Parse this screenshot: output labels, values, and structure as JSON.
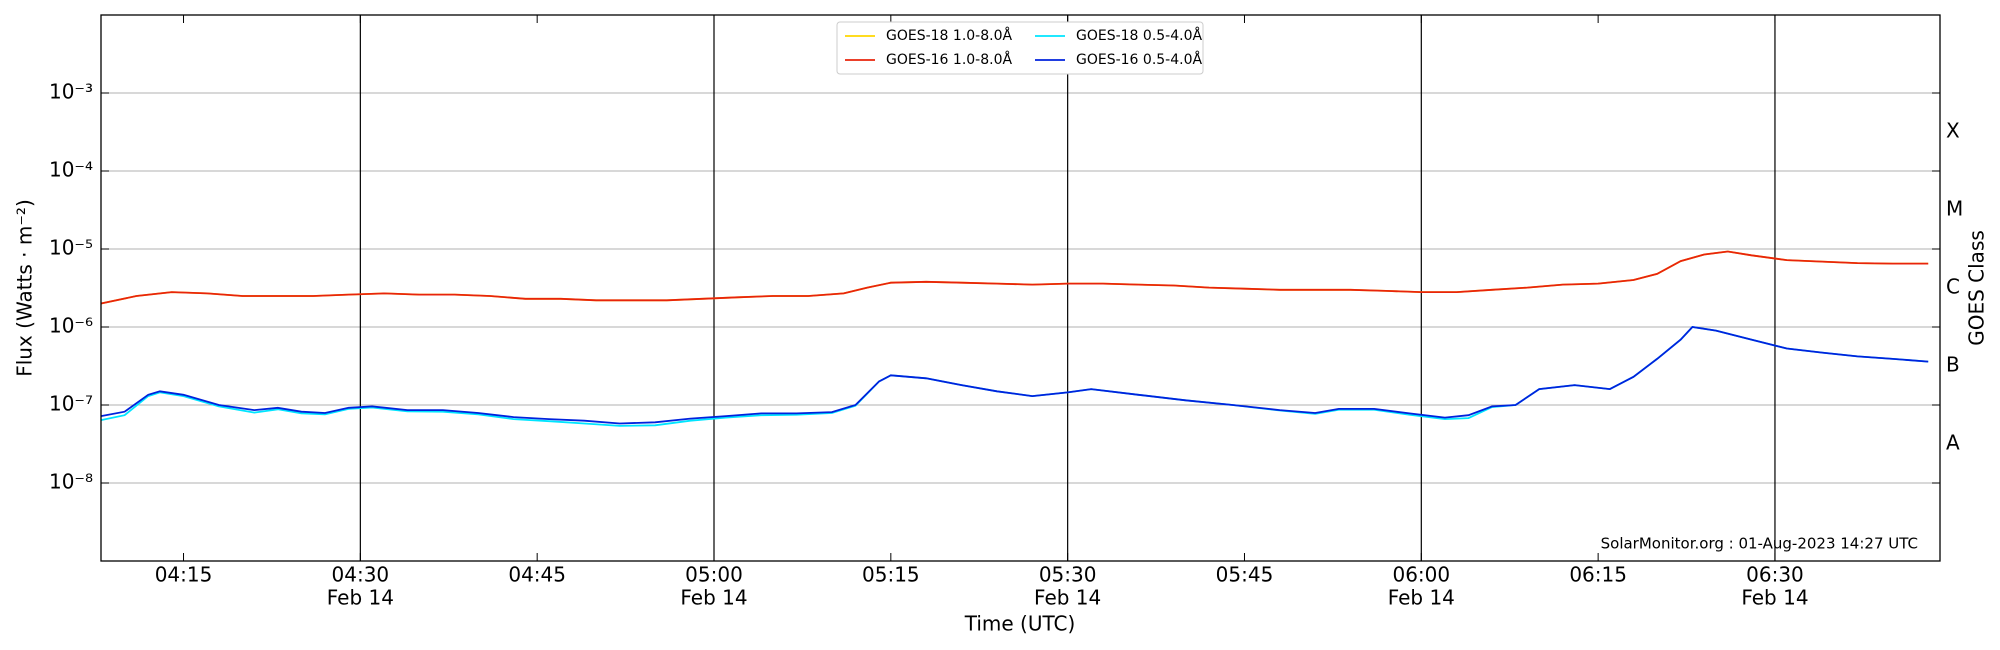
{
  "chart_data": {
    "type": "line",
    "yscale": "log",
    "grid": true,
    "xlabel": "Time (UTC)",
    "ylabel": "Flux (Watts · m⁻²)",
    "y2label": "GOES Class",
    "annotation": "SolarMonitor.org : 01-Aug-2023 14:27 UTC",
    "legend": "upper center",
    "xlim": [
      "04:08",
      "06:44"
    ],
    "xticks": [
      "04:15",
      {
        "value": "04:30",
        "label": "04:30",
        "date": "Feb 14"
      },
      "04:45",
      {
        "value": "05:00",
        "label": "05:00",
        "date": "Feb 14"
      },
      "05:15",
      {
        "value": "05:30",
        "label": "05:30",
        "date": "Feb 14"
      },
      "05:45",
      {
        "value": "06:00",
        "label": "06:00",
        "date": "Feb 14"
      },
      "06:15",
      {
        "value": "06:30",
        "label": "06:30",
        "date": "Feb 14"
      }
    ],
    "ylim": [
      1e-09,
      0.01
    ],
    "yticks": [
      {
        "value": 1e-08,
        "label": "10⁻⁸"
      },
      {
        "value": 1e-07,
        "label": "10⁻⁷"
      },
      {
        "value": 1e-06,
        "label": "10⁻⁶"
      },
      {
        "value": 1e-05,
        "label": "10⁻⁵"
      },
      {
        "value": 0.0001,
        "label": "10⁻⁴"
      },
      {
        "value": 0.001,
        "label": "10⁻³"
      }
    ],
    "classes": [
      {
        "label": "A",
        "value": 1e-08
      },
      {
        "label": "B",
        "value": 1e-07
      },
      {
        "label": "C",
        "value": 1e-06
      },
      {
        "label": "M",
        "value": 1e-05
      },
      {
        "label": "X",
        "value": 0.0001
      }
    ],
    "series": [
      {
        "name": "GOES-18 1.0-8.0Å",
        "color": "#ffd700",
        "x": [
          "04:08",
          "04:11",
          "04:14",
          "04:17",
          "04:20",
          "04:23",
          "04:26",
          "04:29",
          "04:32",
          "04:35",
          "04:38",
          "04:41",
          "04:44",
          "04:47",
          "04:50",
          "04:53",
          "04:56",
          "04:59",
          "05:02",
          "05:05",
          "05:08",
          "05:11",
          "05:13",
          "05:15",
          "05:18",
          "05:21",
          "05:24",
          "05:27",
          "05:30",
          "05:33",
          "05:36",
          "05:39",
          "05:42",
          "05:45",
          "05:48",
          "05:51",
          "05:54",
          "05:57",
          "06:00",
          "06:03",
          "06:06",
          "06:09",
          "06:12",
          "06:15",
          "06:18",
          "06:20",
          "06:22",
          "06:24",
          "06:26",
          "06:28",
          "06:31",
          "06:34",
          "06:37",
          "06:40",
          "06:43"
        ],
        "values": [
          2e-06,
          2.5e-06,
          2.8e-06,
          2.7e-06,
          2.5e-06,
          2.5e-06,
          2.5e-06,
          2.6e-06,
          2.7e-06,
          2.6e-06,
          2.6e-06,
          2.5e-06,
          2.3e-06,
          2.3e-06,
          2.2e-06,
          2.2e-06,
          2.2e-06,
          2.3e-06,
          2.4e-06,
          2.5e-06,
          2.5e-06,
          2.7e-06,
          3.2e-06,
          3.7e-06,
          3.8e-06,
          3.7e-06,
          3.6e-06,
          3.5e-06,
          3.6e-06,
          3.6e-06,
          3.5e-06,
          3.4e-06,
          3.2e-06,
          3.1e-06,
          3e-06,
          3e-06,
          3e-06,
          2.9e-06,
          2.8e-06,
          2.8e-06,
          3e-06,
          3.2e-06,
          3.5e-06,
          3.6e-06,
          4e-06,
          4.8e-06,
          7e-06,
          8.5e-06,
          9.3e-06,
          8.3e-06,
          7.2e-06,
          6.9e-06,
          6.6e-06,
          6.5e-06,
          6.5e-06
        ]
      },
      {
        "name": "GOES-16 1.0-8.0Å",
        "color": "#e8240c",
        "x": [
          "04:08",
          "04:11",
          "04:14",
          "04:17",
          "04:20",
          "04:23",
          "04:26",
          "04:29",
          "04:32",
          "04:35",
          "04:38",
          "04:41",
          "04:44",
          "04:47",
          "04:50",
          "04:53",
          "04:56",
          "04:59",
          "05:02",
          "05:05",
          "05:08",
          "05:11",
          "05:13",
          "05:15",
          "05:18",
          "05:21",
          "05:24",
          "05:27",
          "05:30",
          "05:33",
          "05:36",
          "05:39",
          "05:42",
          "05:45",
          "05:48",
          "05:51",
          "05:54",
          "05:57",
          "06:00",
          "06:03",
          "06:06",
          "06:09",
          "06:12",
          "06:15",
          "06:18",
          "06:20",
          "06:22",
          "06:24",
          "06:26",
          "06:28",
          "06:31",
          "06:34",
          "06:37",
          "06:40",
          "06:43"
        ],
        "values": [
          2e-06,
          2.5e-06,
          2.8e-06,
          2.7e-06,
          2.5e-06,
          2.5e-06,
          2.5e-06,
          2.6e-06,
          2.7e-06,
          2.6e-06,
          2.6e-06,
          2.5e-06,
          2.3e-06,
          2.3e-06,
          2.2e-06,
          2.2e-06,
          2.2e-06,
          2.3e-06,
          2.4e-06,
          2.5e-06,
          2.5e-06,
          2.7e-06,
          3.2e-06,
          3.7e-06,
          3.8e-06,
          3.7e-06,
          3.6e-06,
          3.5e-06,
          3.6e-06,
          3.6e-06,
          3.5e-06,
          3.4e-06,
          3.2e-06,
          3.1e-06,
          3e-06,
          3e-06,
          3e-06,
          2.9e-06,
          2.8e-06,
          2.8e-06,
          3e-06,
          3.2e-06,
          3.5e-06,
          3.6e-06,
          4e-06,
          4.8e-06,
          7e-06,
          8.5e-06,
          9.3e-06,
          8.3e-06,
          7.2e-06,
          6.9e-06,
          6.6e-06,
          6.5e-06,
          6.5e-06
        ]
      },
      {
        "name": "GOES-18 0.5-4.0Å",
        "color": "#00e5ff",
        "x": [
          "04:08",
          "04:10",
          "04:12",
          "04:13",
          "04:15",
          "04:18",
          "04:21",
          "04:23",
          "04:25",
          "04:27",
          "04:29",
          "04:31",
          "04:34",
          "04:37",
          "04:40",
          "04:43",
          "04:46",
          "04:49",
          "04:52",
          "04:55",
          "04:58",
          "05:01",
          "05:04",
          "05:07",
          "05:10",
          "05:12",
          "05:14",
          "05:15",
          "05:18",
          "05:21",
          "05:24",
          "05:27",
          "05:30",
          "05:32",
          "05:36",
          "05:40",
          "05:44",
          "05:48",
          "05:51",
          "05:53",
          "05:56",
          "05:59",
          "06:02",
          "06:04",
          "06:06",
          "06:08",
          "06:10",
          "06:13",
          "06:16",
          "06:18",
          "06:20",
          "06:22",
          "06:23",
          "06:25",
          "06:28",
          "06:31",
          "06:34",
          "06:37",
          "06:40",
          "06:43"
        ],
        "values": [
          6.4e-08,
          7.4e-08,
          1.3e-07,
          1.45e-07,
          1.3e-07,
          9.6e-08,
          8e-08,
          8.8e-08,
          7.8e-08,
          7.6e-08,
          8.9e-08,
          9.3e-08,
          8.3e-08,
          8.2e-08,
          7.6e-08,
          6.6e-08,
          6.2e-08,
          5.8e-08,
          5.4e-08,
          5.5e-08,
          6.3e-08,
          6.9e-08,
          7.4e-08,
          7.5e-08,
          7.9e-08,
          9.8e-08,
          2e-07,
          2.4e-07,
          2.2e-07,
          1.8e-07,
          1.5e-07,
          1.3e-07,
          1.45e-07,
          1.6e-07,
          1.35e-07,
          1.15e-07,
          1e-07,
          8.5e-08,
          7.7e-08,
          8.7e-08,
          8.7e-08,
          7.5e-08,
          6.6e-08,
          6.8e-08,
          9.4e-08,
          1e-07,
          1.6e-07,
          1.8e-07,
          1.6e-07,
          2.3e-07,
          3.9e-07,
          6.9e-07,
          1e-06,
          9e-07,
          6.9e-07,
          5.3e-07,
          4.7e-07,
          4.2e-07,
          3.9e-07,
          3.6e-07
        ]
      },
      {
        "name": "GOES-16 0.5-4.0Å",
        "color": "#0022dd",
        "x": [
          "04:08",
          "04:10",
          "04:12",
          "04:13",
          "04:15",
          "04:18",
          "04:21",
          "04:23",
          "04:25",
          "04:27",
          "04:29",
          "04:31",
          "04:34",
          "04:37",
          "04:40",
          "04:43",
          "04:46",
          "04:49",
          "04:52",
          "04:55",
          "04:58",
          "05:01",
          "05:04",
          "05:07",
          "05:10",
          "05:12",
          "05:14",
          "05:15",
          "05:18",
          "05:21",
          "05:24",
          "05:27",
          "05:30",
          "05:32",
          "05:36",
          "05:40",
          "05:44",
          "05:48",
          "05:51",
          "05:53",
          "05:56",
          "05:59",
          "06:02",
          "06:04",
          "06:06",
          "06:08",
          "06:10",
          "06:13",
          "06:16",
          "06:18",
          "06:20",
          "06:22",
          "06:23",
          "06:25",
          "06:28",
          "06:31",
          "06:34",
          "06:37",
          "06:40",
          "06:43"
        ],
        "values": [
          7.2e-08,
          8.2e-08,
          1.35e-07,
          1.5e-07,
          1.35e-07,
          1e-07,
          8.6e-08,
          9.2e-08,
          8.2e-08,
          7.9e-08,
          9.2e-08,
          9.6e-08,
          8.6e-08,
          8.6e-08,
          7.9e-08,
          7e-08,
          6.6e-08,
          6.3e-08,
          5.8e-08,
          6e-08,
          6.7e-08,
          7.2e-08,
          7.8e-08,
          7.8e-08,
          8.1e-08,
          1e-07,
          2e-07,
          2.4e-07,
          2.2e-07,
          1.8e-07,
          1.5e-07,
          1.3e-07,
          1.45e-07,
          1.6e-07,
          1.35e-07,
          1.15e-07,
          1e-07,
          8.6e-08,
          7.9e-08,
          8.9e-08,
          8.9e-08,
          7.8e-08,
          6.9e-08,
          7.4e-08,
          9.6e-08,
          1e-07,
          1.6e-07,
          1.8e-07,
          1.6e-07,
          2.3e-07,
          3.9e-07,
          6.9e-07,
          1e-06,
          9e-07,
          6.9e-07,
          5.3e-07,
          4.7e-07,
          4.2e-07,
          3.9e-07,
          3.6e-07
        ]
      }
    ]
  }
}
